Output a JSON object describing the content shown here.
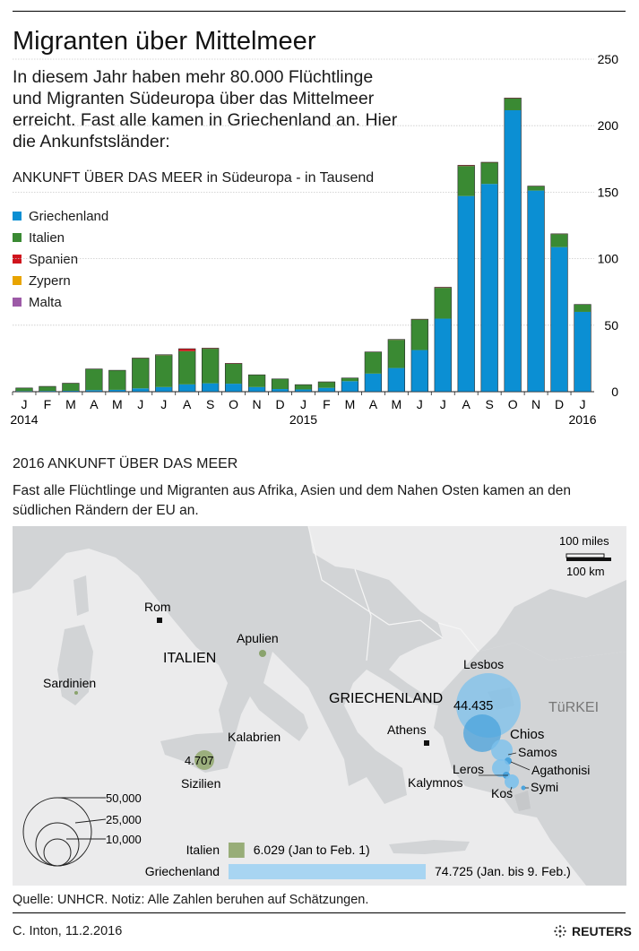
{
  "header": {
    "title": "Migranten über Mittelmeer",
    "intro": "In diesem Jahr haben mehr 80.000 Flüchtlinge und Migranten Südeuropa über das Mittelmeer erreicht. Fast alle kamen in Griechenland an. Hier die Ankunfstsländer:",
    "chart_subtitle": "ANKUNFT ÜBER DAS MEER in Südeuropa - in Tausend"
  },
  "colors": {
    "griechenland": "#0b8fd3",
    "italien": "#3a8a33",
    "spanien": "#d0141d",
    "zypern": "#e8a400",
    "malta": "#9d5aa7",
    "map_land": "#d2d4d6",
    "map_sea": "#ebebec",
    "bubble_gr": "#7cc1ec",
    "bubble_it": "#98ad78"
  },
  "chart_data": {
    "type": "bar",
    "stacked": true,
    "title": "ANKUNFT ÜBER DAS MEER in Südeuropa - in Tausend",
    "ylim": [
      0,
      250
    ],
    "yticks": [
      0,
      50,
      100,
      150,
      200,
      250
    ],
    "categories": [
      "J",
      "F",
      "M",
      "A",
      "M",
      "J",
      "J",
      "A",
      "S",
      "O",
      "N",
      "D",
      "J",
      "F",
      "M",
      "A",
      "M",
      "J",
      "J",
      "A",
      "S",
      "O",
      "N",
      "D",
      "J"
    ],
    "year_labels": [
      {
        "index": 0,
        "label": "2014"
      },
      {
        "index": 12,
        "label": "2015"
      },
      {
        "index": 24,
        "label": "2016"
      }
    ],
    "series": [
      {
        "name": "Griechenland",
        "values": [
          0.5,
          0.6,
          0.7,
          1.2,
          1.4,
          2.5,
          3.5,
          5.5,
          6.3,
          6.0,
          3.5,
          2.0,
          1.7,
          2.9,
          7.9,
          13.6,
          17.8,
          31.3,
          54.9,
          147.1,
          156.2,
          211.6,
          151.2,
          108.7,
          60.0
        ]
      },
      {
        "name": "Italien",
        "values": [
          2.2,
          3.3,
          5.6,
          15.8,
          14.6,
          22.6,
          24.0,
          25.0,
          26.0,
          15.0,
          9.0,
          7.5,
          3.5,
          4.4,
          2.3,
          16.1,
          21.2,
          22.9,
          23.2,
          22.6,
          16.0,
          8.9,
          3.2,
          9.8,
          5.5
        ]
      },
      {
        "name": "Spanien",
        "values": [
          0.1,
          0.1,
          0.1,
          0.1,
          0.1,
          0.2,
          0.3,
          1.8,
          0.4,
          0.3,
          0.2,
          0.1,
          0.1,
          0.1,
          0.1,
          0.2,
          0.3,
          0.3,
          0.4,
          0.5,
          0.3,
          0.3,
          0.2,
          0.2,
          0.1
        ]
      },
      {
        "name": "Zypern",
        "values": [
          0,
          0,
          0,
          0,
          0,
          0,
          0,
          0,
          0,
          0,
          0,
          0,
          0,
          0,
          0,
          0,
          0,
          0,
          0,
          0,
          0,
          0,
          0,
          0,
          0
        ]
      },
      {
        "name": "Malta",
        "values": [
          0,
          0,
          0,
          0,
          0,
          0,
          0,
          0,
          0,
          0,
          0,
          0,
          0,
          0,
          0,
          0,
          0,
          0,
          0,
          0,
          0,
          0,
          0,
          0,
          0
        ]
      }
    ]
  },
  "section2": {
    "title": "2016 ANKUNFT ÜBER DAS MEER",
    "subtitle": "Fast alle Flüchtlinge und Migranten aus Afrika, Asien und dem Nahen Osten kamen an den südlichen Rändern der EU an."
  },
  "map": {
    "labels": {
      "rom": "Rom",
      "apulien": "Apulien",
      "italien": "ITALIEN",
      "sardinien": "Sardinien",
      "kalabrien": "Kalabrien",
      "sizilien": "Sizilien",
      "sizilien_value": "4.707",
      "griechenland": "GRIECHENLAND",
      "athens": "Athens",
      "turkei": "TüRKEI",
      "lesbos": "Lesbos",
      "lesbos_value": "44.435",
      "chios": "Chios",
      "samos": "Samos",
      "agathonisi": "Agathonisi",
      "leros": "Leros",
      "kalymnos": "Kalymnos",
      "kos": "Kos",
      "symi": "Symi"
    },
    "scale": {
      "miles": "100 miles",
      "km": "100 km"
    },
    "size_legend": [
      "50,000",
      "25,000",
      "10,000"
    ],
    "totals": [
      {
        "label": "Italien",
        "value": 6029,
        "text": "6.029 (Jan to Feb. 1)"
      },
      {
        "label": "Griechenland",
        "value": 74725,
        "text": "74.725 (Jan. bis 9. Feb.)"
      }
    ]
  },
  "footer": {
    "source": "Quelle: UNHCR. Notiz: Alle Zahlen beruhen auf Schätzungen.",
    "credit": "C. Inton, 11.2.2016",
    "logo": "REUTERS"
  }
}
